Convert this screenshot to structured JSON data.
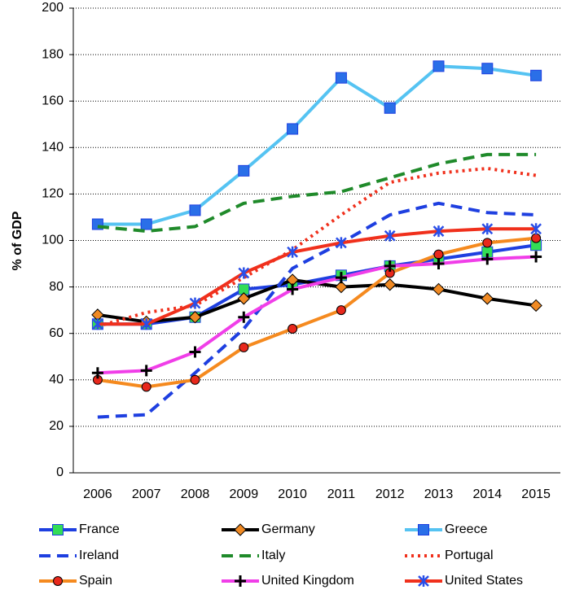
{
  "chart_data": {
    "type": "line",
    "y_label": "% of GDP",
    "categories": [
      "2006",
      "2007",
      "2008",
      "2009",
      "2010",
      "2011",
      "2012",
      "2013",
      "2014",
      "2015"
    ],
    "ylim": [
      0,
      200
    ],
    "yticks": [
      0,
      20,
      40,
      60,
      80,
      100,
      120,
      140,
      160,
      180,
      200
    ],
    "grid": true,
    "series": [
      {
        "name": "France",
        "color": "#1e3fe0",
        "dash": "solid",
        "marker": "square",
        "marker_color": "#33dd55",
        "values": [
          64,
          64,
          67,
          79,
          81,
          85,
          89,
          92,
          95,
          98
        ]
      },
      {
        "name": "Germany",
        "color": "#000000",
        "dash": "solid",
        "marker": "diamond",
        "marker_color": "#f08a24",
        "values": [
          68,
          65,
          67,
          75,
          83,
          80,
          81,
          79,
          75,
          72
        ]
      },
      {
        "name": "Greece",
        "color": "#55c3f2",
        "dash": "solid",
        "marker": "square",
        "marker_color": "#2a6fe8",
        "values": [
          107,
          107,
          113,
          130,
          148,
          170,
          157,
          175,
          174,
          171
        ]
      },
      {
        "name": "Ireland",
        "color": "#1e3fe0",
        "dash": "dashed",
        "marker": "none",
        "marker_color": "#1e3fe0",
        "values": [
          24,
          25,
          43,
          62,
          88,
          99,
          111,
          116,
          112,
          111
        ]
      },
      {
        "name": "Italy",
        "color": "#1f8a2a",
        "dash": "dashed",
        "marker": "none",
        "marker_color": "#1f8a2a",
        "values": [
          106,
          104,
          106,
          116,
          119,
          121,
          127,
          133,
          137,
          137
        ]
      },
      {
        "name": "Portugal",
        "color": "#f0301c",
        "dash": "dotted",
        "marker": "none",
        "marker_color": "#f0301c",
        "values": [
          63,
          69,
          72,
          84,
          96,
          111,
          125,
          129,
          131,
          128
        ]
      },
      {
        "name": "Spain",
        "color": "#f58a1f",
        "dash": "solid",
        "marker": "circle",
        "marker_color": "#e8281c",
        "values": [
          40,
          37,
          40,
          54,
          62,
          70,
          86,
          94,
          99,
          101
        ]
      },
      {
        "name": "United Kingdom",
        "color": "#f03ee8",
        "dash": "solid",
        "marker": "plus",
        "marker_color": "#000000",
        "values": [
          43,
          44,
          52,
          67,
          79,
          84,
          89,
          90,
          92,
          93
        ]
      },
      {
        "name": "United States",
        "color": "#f0301c",
        "dash": "solid",
        "marker": "asterisk",
        "marker_color": "#2a4fe8",
        "values": [
          64,
          64,
          73,
          86,
          95,
          99,
          102,
          104,
          105,
          105
        ]
      }
    ]
  }
}
